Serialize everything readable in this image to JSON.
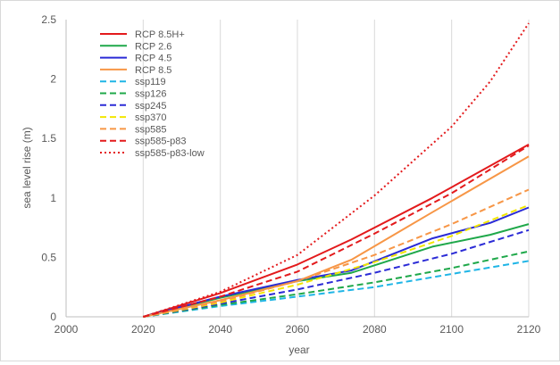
{
  "chart_data": {
    "type": "line",
    "xlabel": "year",
    "ylabel": "sea level rise (m)",
    "xlim": [
      2000,
      2120
    ],
    "ylim": [
      0,
      2.5
    ],
    "x_ticks": [
      2000,
      2020,
      2040,
      2060,
      2080,
      2100,
      2120
    ],
    "y_ticks": [
      0,
      0.5,
      1,
      1.5,
      2,
      2.5
    ],
    "x_tick_labels": [
      "2000",
      "2020",
      "2040",
      "2060",
      "2080",
      "2100",
      "2120"
    ],
    "y_tick_labels": [
      "0",
      "0.5",
      "1",
      "1.5",
      "2",
      "2.5"
    ],
    "grid": "vertical",
    "legend_position": "top-left inside",
    "series": [
      {
        "name": "RCP 8.5H+",
        "color": "#e31a1c",
        "style": "solid",
        "points": [
          [
            2020,
            0
          ],
          [
            2040,
            0.2
          ],
          [
            2060,
            0.44
          ],
          [
            2074,
            0.65
          ],
          [
            2095,
            1.0
          ],
          [
            2120,
            1.45
          ]
        ]
      },
      {
        "name": "RCP 2.6",
        "color": "#1fa84a",
        "style": "solid",
        "points": [
          [
            2020,
            0
          ],
          [
            2040,
            0.16
          ],
          [
            2060,
            0.3
          ],
          [
            2074,
            0.37
          ],
          [
            2095,
            0.59
          ],
          [
            2110,
            0.69
          ],
          [
            2120,
            0.78
          ]
        ]
      },
      {
        "name": "RCP 4.5",
        "color": "#2b2bd6",
        "style": "solid",
        "points": [
          [
            2020,
            0
          ],
          [
            2040,
            0.17
          ],
          [
            2060,
            0.31
          ],
          [
            2074,
            0.39
          ],
          [
            2095,
            0.66
          ],
          [
            2110,
            0.79
          ],
          [
            2120,
            0.92
          ]
        ]
      },
      {
        "name": "RCP 8.5",
        "color": "#f79646",
        "style": "solid",
        "points": [
          [
            2020,
            0
          ],
          [
            2040,
            0.14
          ],
          [
            2060,
            0.3
          ],
          [
            2074,
            0.48
          ],
          [
            2095,
            0.88
          ],
          [
            2120,
            1.35
          ]
        ]
      },
      {
        "name": "ssp119",
        "color": "#1fb5e6",
        "style": "dashed",
        "points": [
          [
            2020,
            0
          ],
          [
            2040,
            0.09
          ],
          [
            2060,
            0.17
          ],
          [
            2080,
            0.25
          ],
          [
            2100,
            0.36
          ],
          [
            2120,
            0.47
          ]
        ]
      },
      {
        "name": "ssp126",
        "color": "#1fa84a",
        "style": "dashed",
        "points": [
          [
            2020,
            0
          ],
          [
            2040,
            0.1
          ],
          [
            2060,
            0.19
          ],
          [
            2080,
            0.29
          ],
          [
            2100,
            0.41
          ],
          [
            2120,
            0.55
          ]
        ]
      },
      {
        "name": "ssp245",
        "color": "#2b2bd6",
        "style": "dashed",
        "points": [
          [
            2020,
            0
          ],
          [
            2040,
            0.11
          ],
          [
            2060,
            0.23
          ],
          [
            2080,
            0.37
          ],
          [
            2100,
            0.53
          ],
          [
            2120,
            0.73
          ]
        ]
      },
      {
        "name": "ssp370",
        "color": "#f2e600",
        "style": "dashed",
        "points": [
          [
            2020,
            0
          ],
          [
            2040,
            0.12
          ],
          [
            2060,
            0.27
          ],
          [
            2080,
            0.46
          ],
          [
            2100,
            0.68
          ],
          [
            2120,
            0.94
          ]
        ]
      },
      {
        "name": "ssp585",
        "color": "#f79646",
        "style": "dashed",
        "points": [
          [
            2020,
            0
          ],
          [
            2040,
            0.13
          ],
          [
            2060,
            0.3
          ],
          [
            2080,
            0.52
          ],
          [
            2100,
            0.78
          ],
          [
            2120,
            1.07
          ]
        ]
      },
      {
        "name": "ssp585-p83",
        "color": "#e31a1c",
        "style": "dashed",
        "points": [
          [
            2020,
            0
          ],
          [
            2040,
            0.17
          ],
          [
            2060,
            0.38
          ],
          [
            2080,
            0.7
          ],
          [
            2100,
            1.04
          ],
          [
            2120,
            1.44
          ]
        ]
      },
      {
        "name": "ssp585-p83-low",
        "color": "#e31a1c",
        "style": "dotted",
        "points": [
          [
            2020,
            0
          ],
          [
            2040,
            0.21
          ],
          [
            2060,
            0.52
          ],
          [
            2080,
            1.02
          ],
          [
            2100,
            1.6
          ],
          [
            2110,
            1.98
          ],
          [
            2120,
            2.47
          ]
        ]
      }
    ]
  }
}
